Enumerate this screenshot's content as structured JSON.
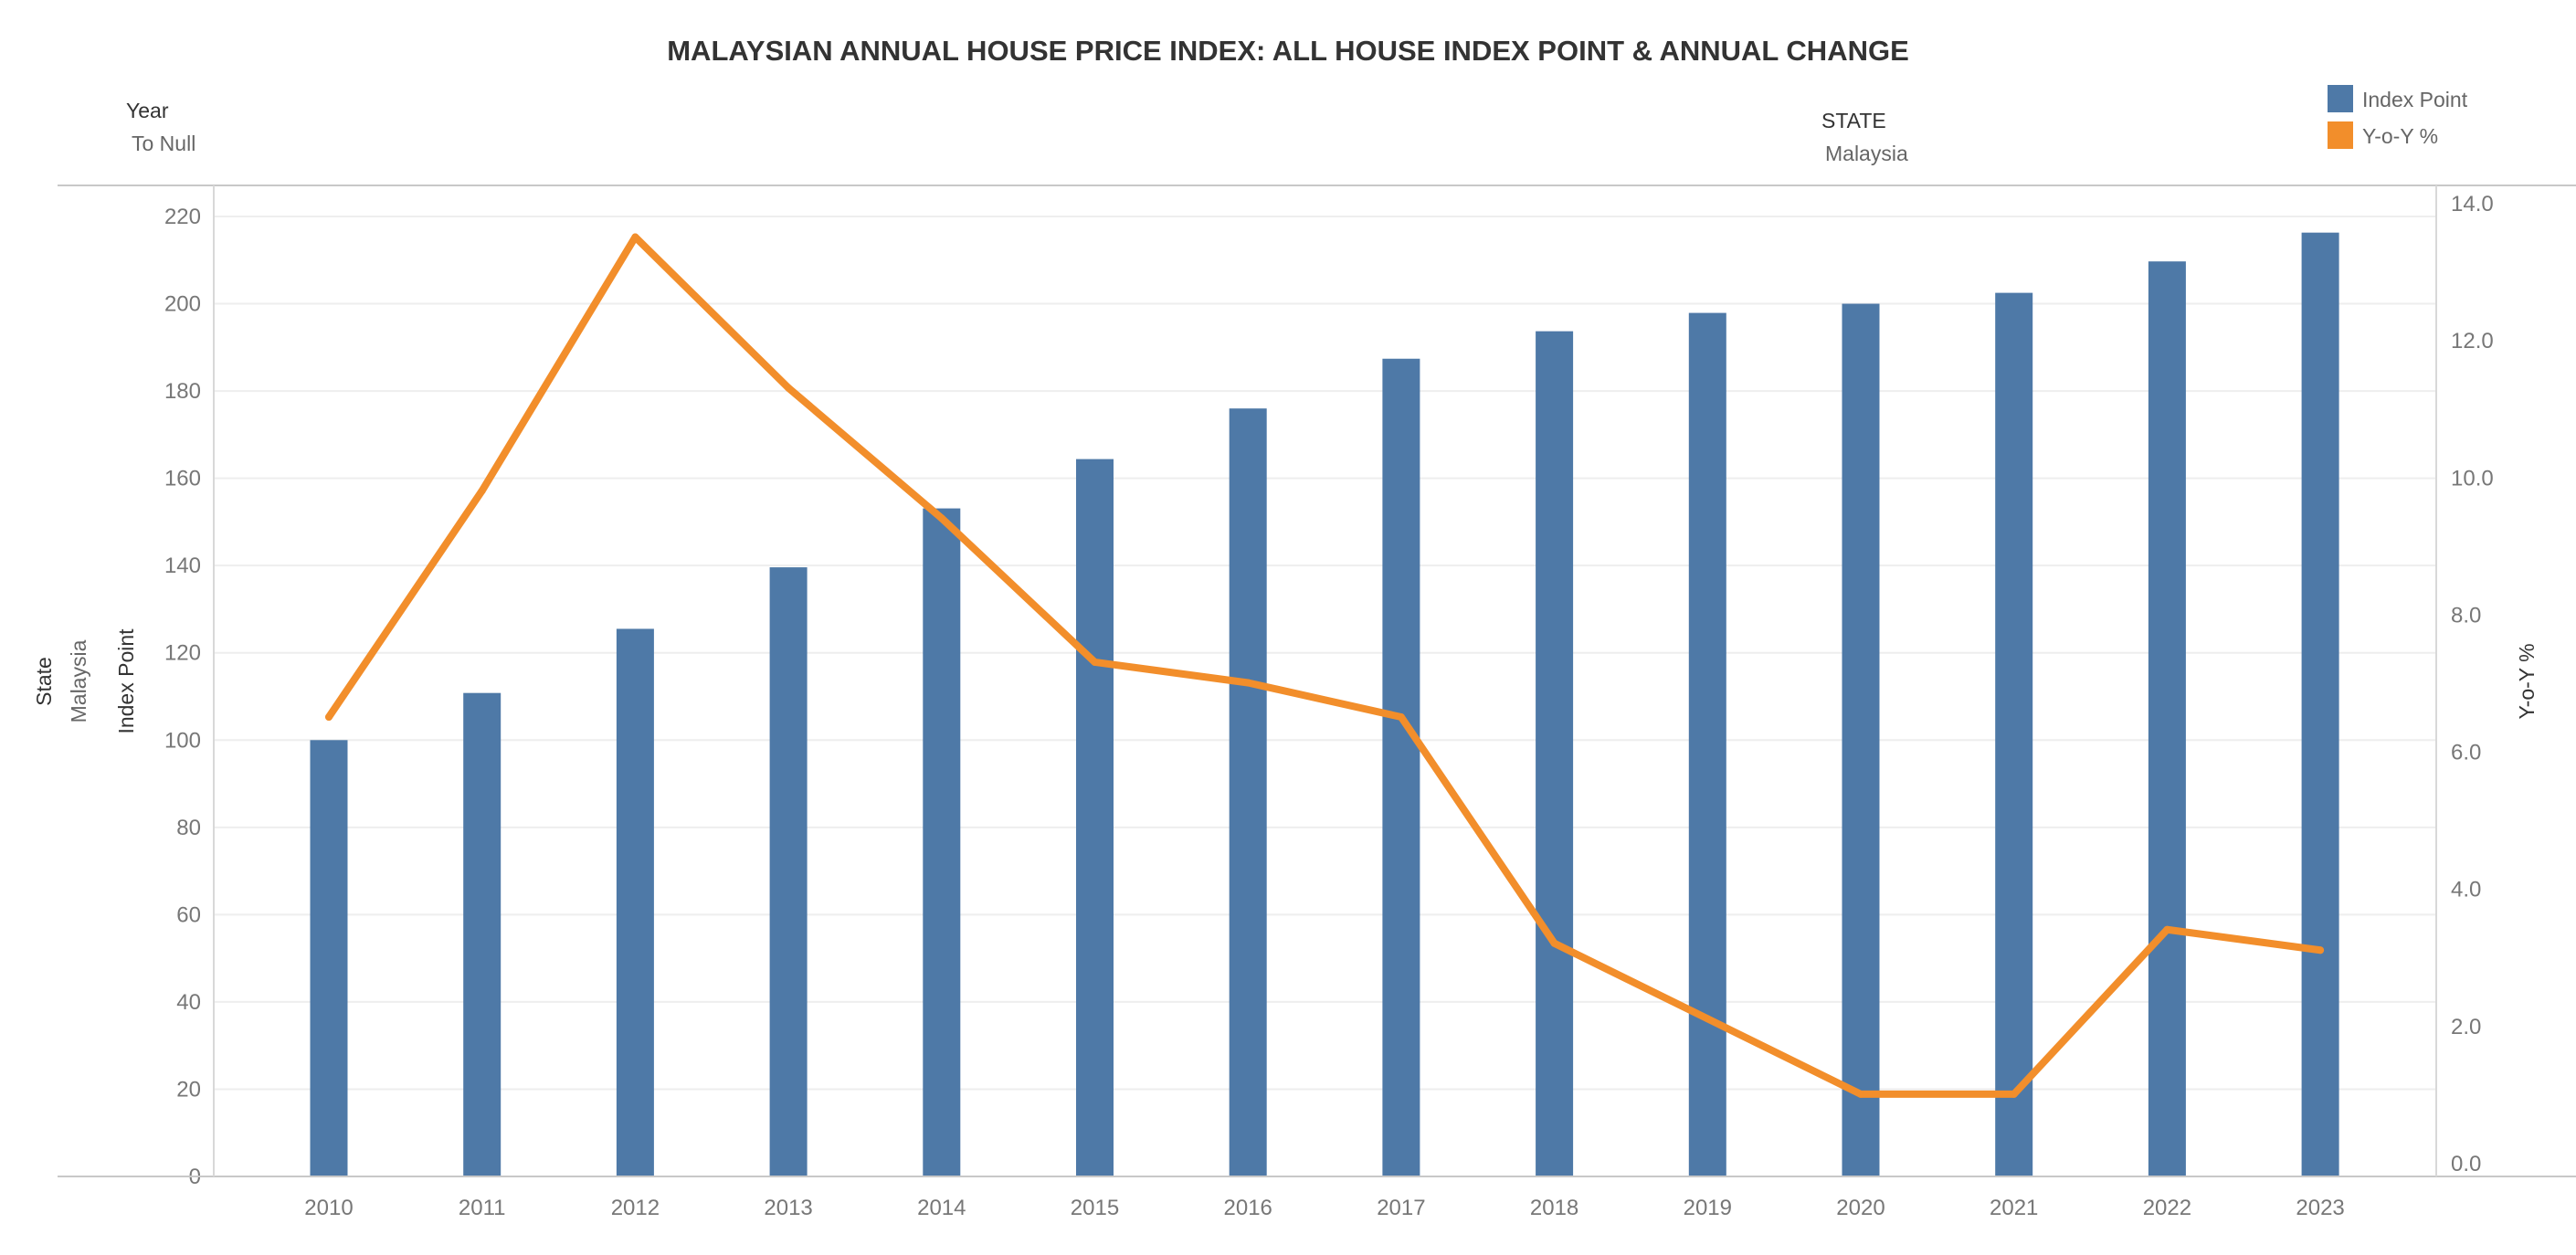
{
  "title": "MALAYSIAN ANNUAL HOUSE PRICE INDEX: ALL HOUSE INDEX POINT & ANNUAL CHANGE",
  "filters": {
    "year": {
      "label": "Year",
      "value": "To Null"
    },
    "state": {
      "label": "STATE",
      "value": "Malaysia"
    }
  },
  "row_header": {
    "label": "State",
    "value": "Malaysia"
  },
  "legend": [
    {
      "name": "Index Point",
      "color": "#4e79a7"
    },
    {
      "name": "Y-o-Y %",
      "color": "#f28e2b"
    }
  ],
  "chart_data": {
    "type": "bar+line",
    "title": "MALAYSIAN ANNUAL HOUSE PRICE INDEX: ALL HOUSE INDEX POINT & ANNUAL CHANGE",
    "categories": [
      "2010",
      "2011",
      "2012",
      "2013",
      "2014",
      "2015",
      "2016",
      "2017",
      "2018",
      "2019",
      "2020",
      "2021",
      "2022",
      "2023"
    ],
    "series": [
      {
        "name": "Index Point",
        "type": "bar",
        "axis": "left",
        "color": "#4e79a7",
        "values": [
          100,
          110.8,
          125.5,
          139.6,
          153.1,
          164.4,
          176.0,
          187.4,
          193.7,
          197.9,
          200.0,
          202.5,
          209.7,
          216.3
        ]
      },
      {
        "name": "Y-o-Y %",
        "type": "line",
        "axis": "right",
        "color": "#f28e2b",
        "values": [
          6.7,
          10.0,
          13.7,
          11.5,
          9.6,
          7.5,
          7.2,
          6.7,
          3.4,
          2.3,
          1.2,
          1.2,
          3.6,
          3.3
        ]
      }
    ],
    "ylabel": "Index Point",
    "ylim": [
      0,
      220
    ],
    "yticks": [
      "0",
      "20",
      "40",
      "60",
      "80",
      "100",
      "120",
      "140",
      "160",
      "180",
      "200",
      "220"
    ],
    "y2label": "Y-o-Y %",
    "y2lim": [
      0,
      14
    ],
    "y2ticks": [
      "0.0",
      "2.0",
      "4.0",
      "6.0",
      "8.0",
      "10.0",
      "12.0",
      "14.0"
    ],
    "grid": true,
    "legend_position": "top-right"
  }
}
